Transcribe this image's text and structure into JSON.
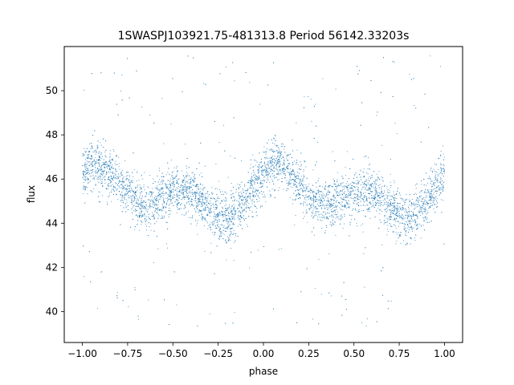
{
  "chart_data": {
    "type": "scatter",
    "title": "1SWASPJ103921.75-481313.8 Period 56142.33203s",
    "xlabel": "phase",
    "ylabel": "flux",
    "xlim": [
      -1.1,
      1.1
    ],
    "ylim": [
      38.6,
      52.0
    ],
    "x_ticks": [
      -1.0,
      -0.75,
      -0.5,
      -0.25,
      0.0,
      0.25,
      0.5,
      0.75,
      1.0
    ],
    "x_tick_labels": [
      "−1.00",
      "−0.75",
      "−0.50",
      "−0.25",
      "0.00",
      "0.25",
      "0.50",
      "0.75",
      "1.00"
    ],
    "y_ticks": [
      40,
      42,
      44,
      46,
      48,
      50
    ],
    "y_tick_labels": [
      "40",
      "42",
      "44",
      "46",
      "48",
      "50"
    ],
    "grid": false,
    "marker_color": "#1f77b4",
    "series": [
      {
        "x": [
          -1.0,
          -0.95,
          -0.9,
          -0.85,
          -0.8,
          -0.75,
          -0.7,
          -0.65,
          -0.6,
          -0.55,
          -0.5,
          -0.45,
          -0.4,
          -0.35,
          -0.3,
          -0.25,
          -0.2,
          -0.15,
          -0.1,
          -0.05,
          0.0,
          0.05,
          0.1,
          0.15,
          0.2,
          0.25,
          0.3,
          0.35,
          0.4,
          0.45,
          0.5,
          0.55,
          0.6,
          0.65,
          0.7,
          0.75,
          0.8,
          0.85,
          0.9,
          0.95,
          1.0
        ],
        "y": [
          46.2,
          46.7,
          46.6,
          46.2,
          45.9,
          45.4,
          45.0,
          44.8,
          44.9,
          45.2,
          45.4,
          45.5,
          45.4,
          45.0,
          44.6,
          44.3,
          44.2,
          44.5,
          45.0,
          45.7,
          46.3,
          46.7,
          46.6,
          46.2,
          45.7,
          45.2,
          45.0,
          44.8,
          44.9,
          45.1,
          45.3,
          45.4,
          45.4,
          45.1,
          44.7,
          44.4,
          44.2,
          44.4,
          44.9,
          45.6,
          46.3
        ]
      }
    ]
  }
}
